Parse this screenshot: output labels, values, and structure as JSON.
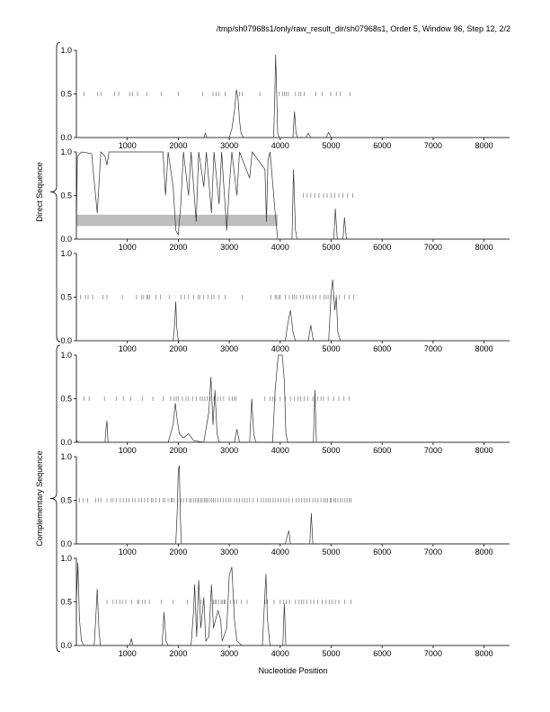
{
  "header": "/tmp/sh07968s1/only/raw_result_dir/sh07968s1, Order 5, Window 96, Step 12, 2/2",
  "xlabel": "Nucleotide Position",
  "group_labels": {
    "direct": "Direct Sequence",
    "complementary": "Complementary Sequence"
  },
  "chart_data": {
    "type": "line",
    "xlim": [
      0,
      8500
    ],
    "ylim": [
      0,
      1
    ],
    "xticks": [
      1000,
      2000,
      3000,
      4000,
      5000,
      6000,
      7000,
      8000
    ],
    "yticks": [
      0.0,
      0.5,
      1.0
    ],
    "ytick_labels": [
      "0.0",
      "0.5",
      "1.0"
    ],
    "grid": false,
    "panels": [
      {
        "group": "Direct Sequence",
        "points": [
          [
            0,
            0
          ],
          [
            2500,
            0
          ],
          [
            2530,
            0.05
          ],
          [
            2560,
            0
          ],
          [
            3000,
            0
          ],
          [
            3050,
            0.1
          ],
          [
            3100,
            0.3
          ],
          [
            3140,
            0.55
          ],
          [
            3170,
            0.45
          ],
          [
            3200,
            0.2
          ],
          [
            3230,
            0.05
          ],
          [
            3280,
            0
          ],
          [
            3870,
            0
          ],
          [
            3890,
            0.4
          ],
          [
            3910,
            0.95
          ],
          [
            3930,
            0.5
          ],
          [
            3950,
            0.05
          ],
          [
            3980,
            0
          ],
          [
            4250,
            0
          ],
          [
            4280,
            0.3
          ],
          [
            4310,
            0.05
          ],
          [
            4340,
            0
          ],
          [
            4500,
            0
          ],
          [
            4550,
            0.05
          ],
          [
            4600,
            0
          ],
          [
            4900,
            0
          ],
          [
            4950,
            0.06
          ],
          [
            5000,
            0
          ],
          [
            8500,
            0
          ]
        ],
        "markers": [
          150,
          420,
          480,
          750,
          830,
          1050,
          1100,
          1200,
          1380,
          1670,
          2000,
          2480,
          2680,
          2740,
          2800,
          2920,
          3200,
          3250,
          3600,
          3980,
          4050,
          4080,
          4120,
          4160,
          4300,
          4360,
          4400,
          4470,
          4700,
          4820,
          4990,
          5100,
          5180,
          5370
        ]
      },
      {
        "group": "Direct Sequence",
        "points": [
          [
            0,
            0.1
          ],
          [
            20,
            0.95
          ],
          [
            100,
            1
          ],
          [
            300,
            0.98
          ],
          [
            360,
            0.6
          ],
          [
            410,
            0.3
          ],
          [
            440,
            0.6
          ],
          [
            480,
            1
          ],
          [
            560,
            0.95
          ],
          [
            600,
            0.85
          ],
          [
            640,
            1
          ],
          [
            1700,
            1
          ],
          [
            1750,
            0.5
          ],
          [
            1800,
            1
          ],
          [
            1900,
            0.6
          ],
          [
            1950,
            0.1
          ],
          [
            2000,
            0.05
          ],
          [
            2050,
            0.4
          ],
          [
            2100,
            1
          ],
          [
            2200,
            0.5
          ],
          [
            2250,
            1
          ],
          [
            2350,
            0.2
          ],
          [
            2400,
            1
          ],
          [
            2500,
            0.6
          ],
          [
            2550,
            1
          ],
          [
            2650,
            0.3
          ],
          [
            2700,
            1
          ],
          [
            2800,
            0.4
          ],
          [
            2850,
            1
          ],
          [
            2950,
            0.1
          ],
          [
            3000,
            0.6
          ],
          [
            3050,
            1
          ],
          [
            3150,
            0.5
          ],
          [
            3200,
            1
          ],
          [
            3400,
            0.7
          ],
          [
            3450,
            1
          ],
          [
            3700,
            0.8
          ],
          [
            3730,
            0.2
          ],
          [
            3760,
            0.9
          ],
          [
            3800,
            1
          ],
          [
            3900,
            0.3
          ],
          [
            3950,
            0
          ],
          [
            4230,
            0
          ],
          [
            4260,
            0.8
          ],
          [
            4300,
            0.1
          ],
          [
            4330,
            0
          ],
          [
            5050,
            0
          ],
          [
            5080,
            0.35
          ],
          [
            5120,
            0
          ],
          [
            5230,
            0
          ],
          [
            5260,
            0.25
          ],
          [
            5300,
            0
          ],
          [
            8500,
            0
          ]
        ],
        "markers": [
          4450,
          4530,
          4600,
          4680,
          4760,
          4850,
          4920,
          5000,
          5070,
          5150,
          5230,
          5320,
          5420
        ],
        "shaded_band": {
          "x": [
            0,
            3950
          ],
          "y": [
            0.15,
            0.28
          ]
        }
      },
      {
        "group": "Direct Sequence",
        "points": [
          [
            0,
            0
          ],
          [
            1900,
            0
          ],
          [
            1930,
            0.2
          ],
          [
            1950,
            0.45
          ],
          [
            1970,
            0.15
          ],
          [
            2000,
            0
          ],
          [
            4100,
            0
          ],
          [
            4150,
            0.2
          ],
          [
            4200,
            0.35
          ],
          [
            4250,
            0.1
          ],
          [
            4300,
            0
          ],
          [
            4550,
            0
          ],
          [
            4600,
            0.18
          ],
          [
            4650,
            0
          ],
          [
            4950,
            0
          ],
          [
            5000,
            0.55
          ],
          [
            5030,
            0.7
          ],
          [
            5070,
            0.35
          ],
          [
            5100,
            0.5
          ],
          [
            5130,
            0.1
          ],
          [
            5180,
            0
          ],
          [
            8500,
            0
          ]
        ],
        "markers": [
          80,
          180,
          230,
          320,
          520,
          600,
          900,
          1180,
          1280,
          1320,
          1380,
          1400,
          1440,
          1560,
          1650,
          1830,
          2050,
          2120,
          2200,
          2300,
          2390,
          2420,
          2500,
          2580,
          2650,
          2700,
          2800,
          2920,
          3250,
          3820,
          3900,
          3930,
          3970,
          4000,
          4100,
          4180,
          4240,
          4280,
          4320,
          4400,
          4450,
          4520,
          4580,
          4640,
          4700,
          4780,
          4860,
          4900,
          4940,
          4990,
          5050,
          5100,
          5160,
          5260,
          5350,
          5440
        ]
      },
      {
        "group": "Complementary Sequence",
        "points": [
          [
            0,
            0.02
          ],
          [
            60,
            0
          ],
          [
            560,
            0
          ],
          [
            580,
            0.15
          ],
          [
            600,
            0.25
          ],
          [
            620,
            0
          ],
          [
            1800,
            0
          ],
          [
            1900,
            0.2
          ],
          [
            1940,
            0.45
          ],
          [
            1980,
            0.25
          ],
          [
            2020,
            0.1
          ],
          [
            2100,
            0.05
          ],
          [
            2200,
            0.1
          ],
          [
            2300,
            0.02
          ],
          [
            2500,
            0
          ],
          [
            2600,
            0.35
          ],
          [
            2640,
            0.75
          ],
          [
            2680,
            0.2
          ],
          [
            2720,
            0.6
          ],
          [
            2760,
            0.1
          ],
          [
            2800,
            0
          ],
          [
            3100,
            0
          ],
          [
            3150,
            0.15
          ],
          [
            3200,
            0
          ],
          [
            3400,
            0
          ],
          [
            3440,
            0.5
          ],
          [
            3480,
            0.1
          ],
          [
            3520,
            0
          ],
          [
            3850,
            0
          ],
          [
            3900,
            0.6
          ],
          [
            3960,
            1
          ],
          [
            4040,
            1
          ],
          [
            4080,
            0.7
          ],
          [
            4110,
            0.1
          ],
          [
            4150,
            0
          ],
          [
            4650,
            0
          ],
          [
            4680,
            0.6
          ],
          [
            4710,
            0
          ],
          [
            8500,
            0
          ]
        ],
        "markers": [
          150,
          250,
          550,
          780,
          920,
          1070,
          1300,
          1500,
          1700,
          1850,
          1920,
          1960,
          2000,
          2080,
          2150,
          2200,
          2280,
          2350,
          2430,
          2470,
          2520,
          2570,
          2620,
          2700,
          2770,
          2830,
          2890,
          3000,
          3060,
          3100,
          3130,
          3700,
          3800,
          3850,
          3900,
          4000,
          4100,
          4200,
          4280,
          4350,
          4400,
          4470,
          4540,
          4640,
          4740,
          4800,
          4850,
          4940,
          5050,
          5150,
          5250,
          5350
        ]
      },
      {
        "group": "Complementary Sequence",
        "points": [
          [
            0,
            0
          ],
          [
            1950,
            0
          ],
          [
            1980,
            0.4
          ],
          [
            2000,
            0.85
          ],
          [
            2020,
            0.9
          ],
          [
            2040,
            0.3
          ],
          [
            2060,
            0
          ],
          [
            4100,
            0
          ],
          [
            4140,
            0.1
          ],
          [
            4170,
            0.15
          ],
          [
            4200,
            0
          ],
          [
            4580,
            0
          ],
          [
            4610,
            0.35
          ],
          [
            4640,
            0
          ],
          [
            8500,
            0
          ]
        ],
        "markers": [
          60,
          130,
          220,
          380,
          430,
          480,
          600,
          680,
          720,
          780,
          860,
          920,
          980,
          1030,
          1100,
          1150,
          1220,
          1280,
          1340,
          1400,
          1470,
          1500,
          1560,
          1630,
          1700,
          1740,
          1800,
          1860,
          1880,
          1920,
          1990,
          2050,
          2100,
          2160,
          2220,
          2250,
          2300,
          2340,
          2380,
          2400,
          2440,
          2470,
          2510,
          2540,
          2570,
          2610,
          2650,
          2690,
          2720,
          2780,
          2830,
          2880,
          2940,
          2990,
          3030,
          3100,
          3150,
          3200,
          3260,
          3300,
          3350,
          3400,
          3470,
          3550,
          3620,
          3670,
          3720,
          3760,
          3800,
          3860,
          3900,
          3960,
          4010,
          4070,
          4120,
          4170,
          4240,
          4310,
          4370,
          4420,
          4470,
          4520,
          4580,
          4640,
          4690,
          4740,
          4800,
          4860,
          4890,
          4930,
          4980,
          5000,
          5050,
          5090,
          5130,
          5180,
          5220,
          5270,
          5310,
          5350,
          5390
        ]
      },
      {
        "group": "Complementary Sequence",
        "points": [
          [
            0,
            0.5
          ],
          [
            30,
            0.95
          ],
          [
            60,
            0.3
          ],
          [
            100,
            0.05
          ],
          [
            150,
            0
          ],
          [
            350,
            0
          ],
          [
            380,
            0.3
          ],
          [
            410,
            0.65
          ],
          [
            440,
            0.2
          ],
          [
            470,
            0
          ],
          [
            1050,
            0
          ],
          [
            1080,
            0.08
          ],
          [
            1110,
            0
          ],
          [
            1680,
            0
          ],
          [
            1720,
            0.38
          ],
          [
            1760,
            0.05
          ],
          [
            1800,
            0
          ],
          [
            2250,
            0
          ],
          [
            2300,
            0.4
          ],
          [
            2320,
            0.7
          ],
          [
            2360,
            0.1
          ],
          [
            2400,
            0.75
          ],
          [
            2440,
            0.2
          ],
          [
            2500,
            0.55
          ],
          [
            2540,
            0.05
          ],
          [
            2600,
            0.1
          ],
          [
            2650,
            0.7
          ],
          [
            2690,
            0.2
          ],
          [
            2780,
            0.4
          ],
          [
            2830,
            0.3
          ],
          [
            2860,
            0.05
          ],
          [
            2950,
            0.2
          ],
          [
            3000,
            0.8
          ],
          [
            3050,
            0.9
          ],
          [
            3100,
            0.3
          ],
          [
            3150,
            0.05
          ],
          [
            3250,
            0
          ],
          [
            3650,
            0
          ],
          [
            3700,
            0.6
          ],
          [
            3720,
            0.82
          ],
          [
            3750,
            0.3
          ],
          [
            3800,
            0
          ],
          [
            4050,
            0
          ],
          [
            4080,
            0.48
          ],
          [
            4110,
            0
          ],
          [
            8500,
            0
          ]
        ],
        "markers": [
          600,
          720,
          780,
          850,
          900,
          970,
          1080,
          1200,
          1230,
          1300,
          1350,
          1430,
          1670,
          1900,
          2180,
          2450,
          2690,
          2720,
          2750,
          2790,
          2840,
          2870,
          2900,
          2920,
          3020,
          3100,
          3150,
          3240,
          3350,
          3700,
          3750,
          3880,
          4000,
          4060,
          4120,
          4180,
          4300,
          4370,
          4420,
          4460,
          4520,
          4600,
          4660,
          4740,
          4820,
          4900,
          4960,
          5020,
          5080,
          5150,
          5260,
          5390
        ]
      }
    ]
  }
}
